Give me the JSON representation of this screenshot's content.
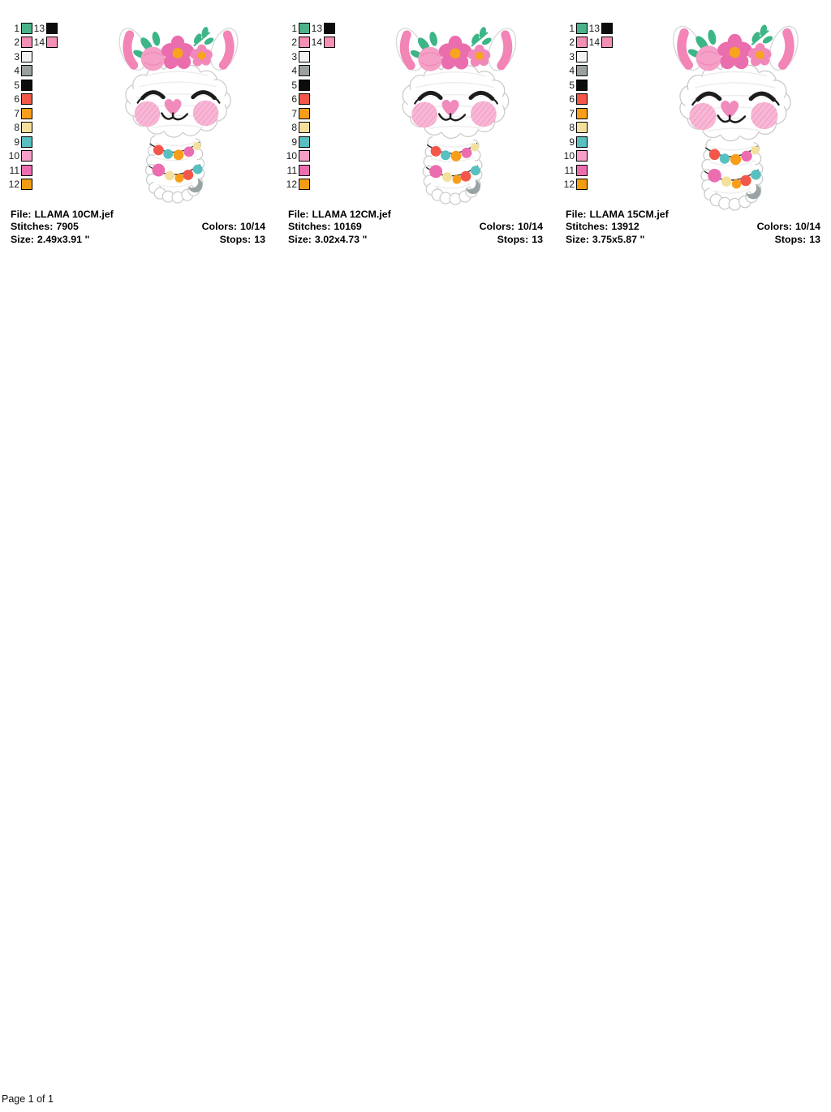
{
  "page": {
    "footer": "Page 1 of 1"
  },
  "palette": {
    "colors": [
      {
        "n": "1",
        "hex": "#4bb289"
      },
      {
        "n": "2",
        "hex": "#f48fb5"
      },
      {
        "n": "3",
        "hex": "#f3f3f3"
      },
      {
        "n": "4",
        "hex": "#9aa0a0"
      },
      {
        "n": "5",
        "hex": "#0c0c0c"
      },
      {
        "n": "6",
        "hex": "#f25749"
      },
      {
        "n": "7",
        "hex": "#f89e1b"
      },
      {
        "n": "8",
        "hex": "#f4e09c"
      },
      {
        "n": "9",
        "hex": "#58c0c0"
      },
      {
        "n": "10",
        "hex": "#f79fc8"
      },
      {
        "n": "11",
        "hex": "#ec6cb0"
      },
      {
        "n": "12",
        "hex": "#f29c13"
      },
      {
        "n": "13",
        "hex": "#0c0c0c"
      },
      {
        "n": "14",
        "hex": "#f48fb5"
      }
    ]
  },
  "designs": [
    {
      "file_label": "File:",
      "file": "LLAMA 10CM.jef",
      "stitches_label": "Stitches:",
      "stitches": "7905",
      "size_label": "Size:",
      "size": "2.49x3.91 \"",
      "colors_label": "Colors:",
      "colors": "10/14",
      "stops_label": "Stops:",
      "stops": "13"
    },
    {
      "file_label": "File:",
      "file": "LLAMA 12CM.jef",
      "stitches_label": "Stitches:",
      "stitches": "10169",
      "size_label": "Size:",
      "size": "3.02x4.73 \"",
      "colors_label": "Colors:",
      "colors": "10/14",
      "stops_label": "Stops:",
      "stops": "13"
    },
    {
      "file_label": "File:",
      "file": "LLAMA 15CM.jef",
      "stitches_label": "Stitches:",
      "stitches": "13912",
      "size_label": "Size:",
      "size": "3.75x5.87 \"",
      "colors_label": "Colors:",
      "colors": "10/14",
      "stops_label": "Stops:",
      "stops": "13"
    }
  ]
}
